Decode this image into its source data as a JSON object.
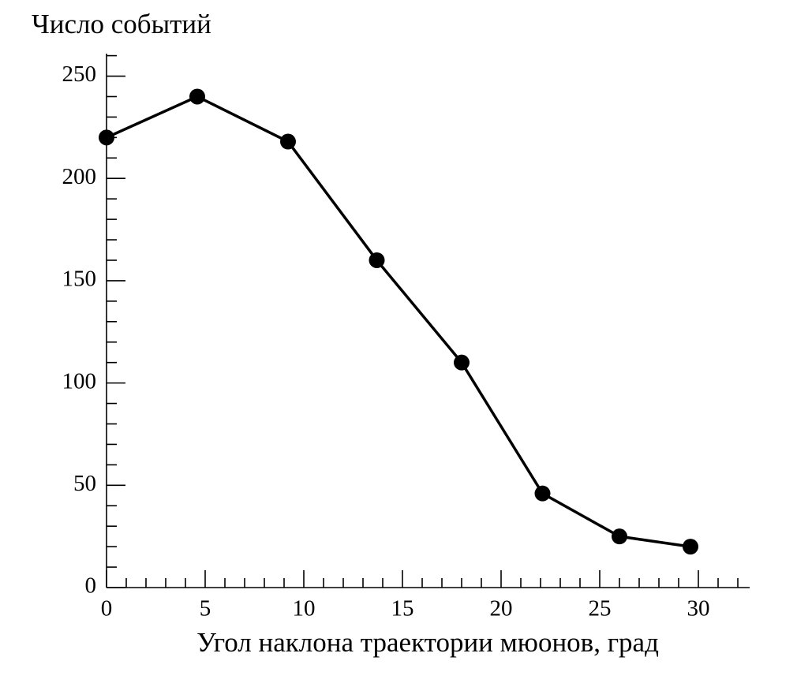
{
  "chart_data": {
    "type": "line",
    "y_label": "Число событий",
    "x_label": "Угол наклона траектории мюонов, град",
    "x": [
      0,
      4.6,
      9.2,
      13.7,
      18.0,
      22.1,
      26.0,
      29.6
    ],
    "series": [
      {
        "color": "#000000",
        "values": [
          220,
          240,
          218,
          160,
          110,
          46,
          25,
          20
        ]
      }
    ],
    "xlim": [
      0,
      32.6
    ],
    "ylim": [
      0,
      261
    ],
    "xticks": [
      0,
      5,
      10,
      15,
      20,
      25,
      30
    ],
    "yticks": [
      0,
      50,
      100,
      150,
      200,
      250
    ],
    "xminorticks": [
      1,
      2,
      3,
      4,
      6,
      7,
      8,
      9,
      11,
      12,
      13,
      14,
      16,
      17,
      18,
      19,
      21,
      22,
      23,
      24,
      26,
      27,
      28,
      29,
      31,
      32
    ],
    "yminorticks": [
      10,
      20,
      30,
      40,
      60,
      70,
      80,
      90,
      110,
      120,
      130,
      140,
      160,
      170,
      180,
      190,
      210,
      220,
      230,
      240,
      260
    ],
    "markers": true
  }
}
